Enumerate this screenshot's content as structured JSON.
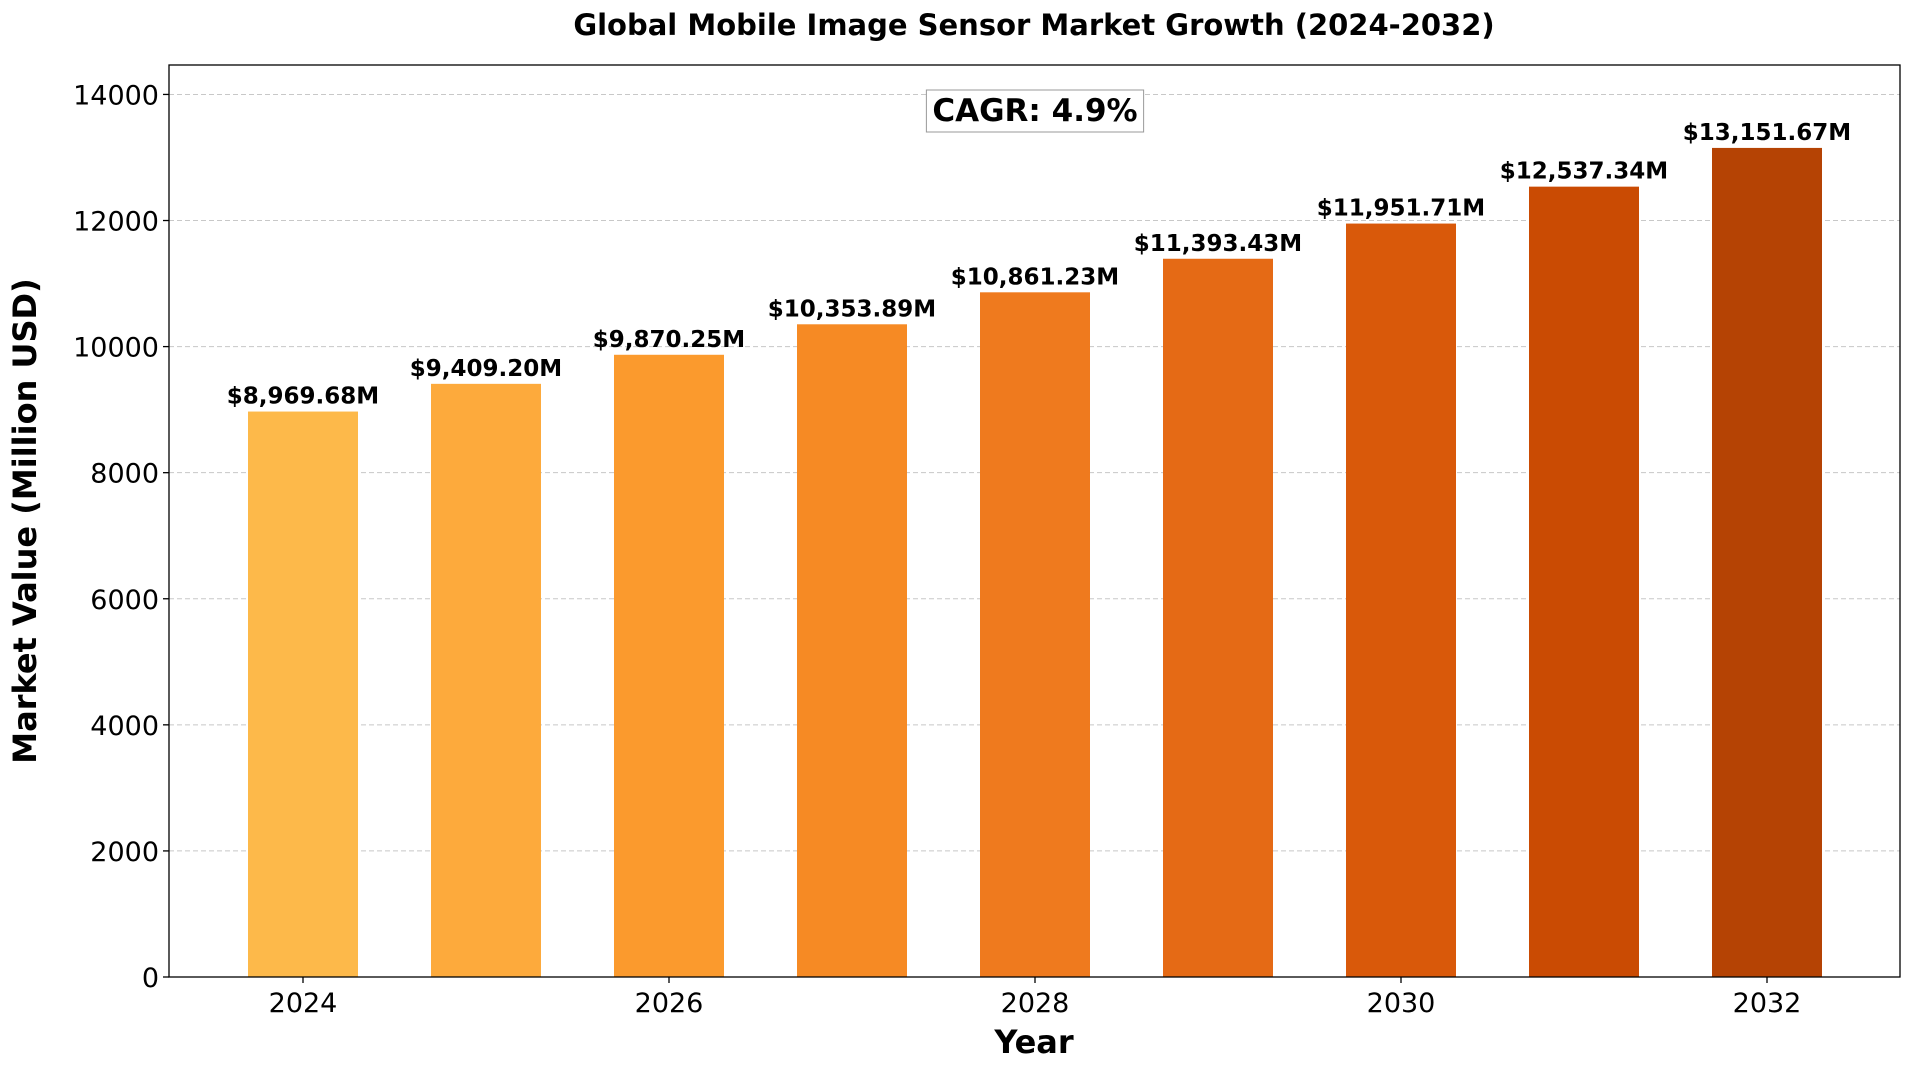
{
  "chart_data": {
    "type": "bar",
    "title": "Global Mobile Image Sensor Market Growth (2024-2032)",
    "xlabel": "Year",
    "ylabel": "Market Value (Million USD)",
    "categories": [
      "2024",
      "2025",
      "2026",
      "2027",
      "2028",
      "2029",
      "2030",
      "2031",
      "2032"
    ],
    "values": [
      8969.68,
      9409.2,
      9870.25,
      10353.89,
      10861.23,
      11393.43,
      11951.71,
      12537.34,
      13151.67
    ],
    "data_labels": [
      "$8,969.68M",
      "$9,409.20M",
      "$9,870.25M",
      "$10,353.89M",
      "$10,861.23M",
      "$11,393.43M",
      "$11,951.71M",
      "$12,537.34M",
      "$13,151.67M"
    ],
    "colors": [
      "#FDB94A",
      "#FDAA3C",
      "#FB9A2D",
      "#F68A24",
      "#EF7A1E",
      "#E56A15",
      "#D9590A",
      "#CA4B03",
      "#B54304"
    ],
    "x_tick_labels": [
      "2024",
      "2026",
      "2028",
      "2030",
      "2032"
    ],
    "y_ticks": [
      0,
      2000,
      4000,
      6000,
      8000,
      10000,
      12000,
      14000
    ],
    "ylim": [
      0,
      14467
    ],
    "grid": "y-dashed",
    "annotation": "CAGR: 4.9%"
  }
}
